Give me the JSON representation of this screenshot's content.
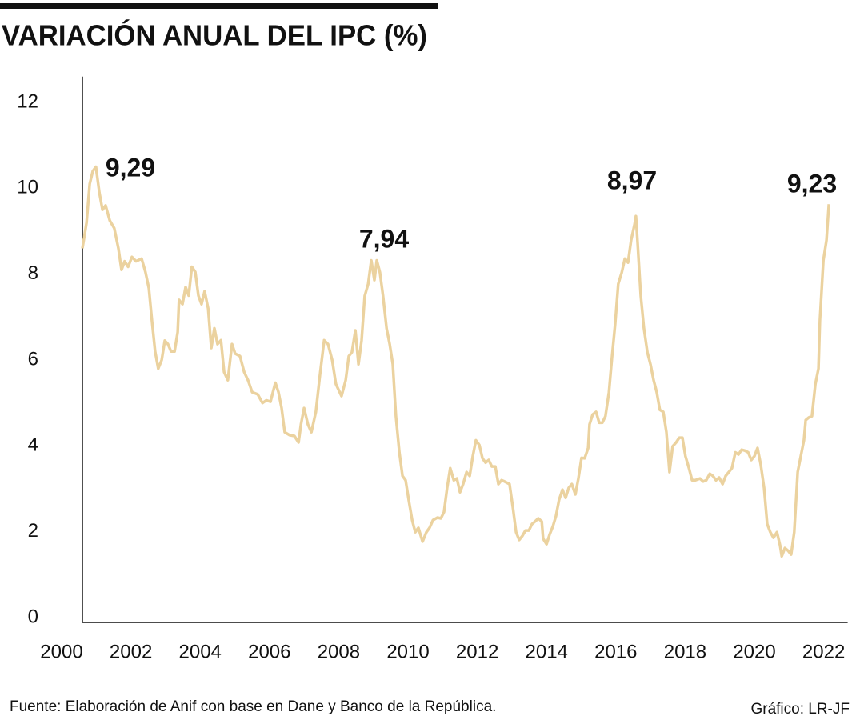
{
  "chart_data": {
    "type": "line",
    "title": "VARIACIÓN ANUAL DEL IPC (%)",
    "source": "Fuente: Elaboración de Anif con base en Dane y Banco de la República.",
    "credit": "Gráfico: LR-JF",
    "annotations": [
      "9,29",
      "7,94",
      "8,97",
      "9,23"
    ],
    "xlim": [
      2000,
      2022.6
    ],
    "xticks": [
      2000,
      2002,
      2004,
      2006,
      2008,
      2010,
      2012,
      2014,
      2016,
      2018,
      2020,
      2022
    ],
    "ylim": [
      0,
      12.6
    ],
    "yticks": [
      0,
      2,
      4,
      6,
      8,
      10,
      12
    ],
    "grid": false,
    "series": [
      {
        "name": "IPC",
        "color": "#ebd29f",
        "x": [
          2000.6,
          2000.72,
          2000.81,
          2000.9,
          2000.99,
          2001.09,
          2001.18,
          2001.27,
          2001.39,
          2001.52,
          2001.64,
          2001.73,
          2001.82,
          2001.92,
          2002.03,
          2002.15,
          2002.31,
          2002.42,
          2002.52,
          2002.61,
          2002.7,
          2002.79,
          2002.89,
          2002.98,
          2003.07,
          2003.16,
          2003.26,
          2003.35,
          2003.39,
          2003.49,
          2003.58,
          2003.67,
          2003.76,
          2003.86,
          2003.95,
          2004.04,
          2004.13,
          2004.23,
          2004.32,
          2004.41,
          2004.5,
          2004.6,
          2004.69,
          2004.8,
          2004.92,
          2005.01,
          2005.15,
          2005.27,
          2005.38,
          2005.5,
          2005.66,
          2005.8,
          2005.91,
          2006.03,
          2006.17,
          2006.26,
          2006.35,
          2006.44,
          2006.58,
          2006.72,
          2006.84,
          2006.91,
          2007.0,
          2007.11,
          2007.21,
          2007.34,
          2007.46,
          2007.58,
          2007.69,
          2007.81,
          2007.92,
          2008.08,
          2008.2,
          2008.29,
          2008.38,
          2008.48,
          2008.57,
          2008.66,
          2008.75,
          2008.85,
          2008.94,
          2009.03,
          2009.1,
          2009.19,
          2009.28,
          2009.38,
          2009.47,
          2009.56,
          2009.65,
          2009.75,
          2009.84,
          2009.93,
          2010.02,
          2010.12,
          2010.21,
          2010.3,
          2010.42,
          2010.53,
          2010.62,
          2010.72,
          2010.85,
          2010.95,
          2011.04,
          2011.13,
          2011.22,
          2011.32,
          2011.41,
          2011.5,
          2011.59,
          2011.69,
          2011.78,
          2011.87,
          2011.96,
          2012.06,
          2012.15,
          2012.24,
          2012.33,
          2012.42,
          2012.52,
          2012.61,
          2012.7,
          2012.79,
          2012.93,
          2013.03,
          2013.12,
          2013.21,
          2013.3,
          2013.39,
          2013.49,
          2013.58,
          2013.67,
          2013.76,
          2013.86,
          2013.9,
          2014.0,
          2014.09,
          2014.18,
          2014.27,
          2014.36,
          2014.46,
          2014.55,
          2014.64,
          2014.73,
          2014.83,
          2014.92,
          2015.01,
          2015.1,
          2015.2,
          2015.24,
          2015.33,
          2015.43,
          2015.52,
          2015.61,
          2015.7,
          2015.8,
          2015.89,
          2015.98,
          2016.07,
          2016.17,
          2016.26,
          2016.35,
          2016.44,
          2016.54,
          2016.58,
          2016.63,
          2016.72,
          2016.81,
          2016.91,
          2017.0,
          2017.09,
          2017.18,
          2017.27,
          2017.37,
          2017.46,
          2017.55,
          2017.64,
          2017.74,
          2017.83,
          2017.92,
          2018.01,
          2018.11,
          2018.2,
          2018.29,
          2018.43,
          2018.52,
          2018.61,
          2018.71,
          2018.8,
          2018.89,
          2018.98,
          2019.08,
          2019.17,
          2019.26,
          2019.35,
          2019.45,
          2019.54,
          2019.63,
          2019.72,
          2019.82,
          2019.91,
          2020.0,
          2020.09,
          2020.18,
          2020.28,
          2020.37,
          2020.46,
          2020.55,
          2020.65,
          2020.74,
          2020.79,
          2020.88,
          2020.97,
          2021.06,
          2021.15,
          2021.25,
          2021.34,
          2021.43,
          2021.48,
          2021.57,
          2021.66,
          2021.76,
          2021.85,
          2021.89,
          2021.99,
          2022.08,
          2022.15
        ],
        "values": [
          8.6,
          9.2,
          10.1,
          10.4,
          10.5,
          9.9,
          9.5,
          9.6,
          9.25,
          9.07,
          8.6,
          8.1,
          8.3,
          8.17,
          8.4,
          8.3,
          8.36,
          8.05,
          7.67,
          6.9,
          6.2,
          5.8,
          6.0,
          6.45,
          6.37,
          6.2,
          6.2,
          6.65,
          7.4,
          7.3,
          7.7,
          7.5,
          8.17,
          8.05,
          7.5,
          7.3,
          7.6,
          7.2,
          6.28,
          6.74,
          6.37,
          6.46,
          5.72,
          5.53,
          6.37,
          6.15,
          6.09,
          5.72,
          5.53,
          5.25,
          5.2,
          5.0,
          5.06,
          5.03,
          5.47,
          5.25,
          4.88,
          4.32,
          4.25,
          4.23,
          4.08,
          4.5,
          4.88,
          4.5,
          4.32,
          4.79,
          5.66,
          6.46,
          6.37,
          6.0,
          5.44,
          5.16,
          5.53,
          6.09,
          6.18,
          6.69,
          5.9,
          6.46,
          7.49,
          7.77,
          8.32,
          7.86,
          8.32,
          8.04,
          7.49,
          6.74,
          6.37,
          5.9,
          4.69,
          3.85,
          3.3,
          3.2,
          2.74,
          2.27,
          1.99,
          2.09,
          1.77,
          1.99,
          2.09,
          2.27,
          2.33,
          2.31,
          2.46,
          3.02,
          3.48,
          3.2,
          3.24,
          2.92,
          3.11,
          3.39,
          3.3,
          3.76,
          4.13,
          4.02,
          3.71,
          3.61,
          3.67,
          3.52,
          3.52,
          3.11,
          3.2,
          3.17,
          3.11,
          2.55,
          1.99,
          1.81,
          1.9,
          2.03,
          2.03,
          2.18,
          2.24,
          2.31,
          2.24,
          1.84,
          1.71,
          1.94,
          2.12,
          2.36,
          2.74,
          2.98,
          2.79,
          3.02,
          3.11,
          2.87,
          3.24,
          3.72,
          3.71,
          3.95,
          4.5,
          4.73,
          4.79,
          4.54,
          4.54,
          4.69,
          5.25,
          6.09,
          6.83,
          7.77,
          8.04,
          8.36,
          8.27,
          8.79,
          9.16,
          9.35,
          8.7,
          7.49,
          6.74,
          6.18,
          5.9,
          5.53,
          5.25,
          4.84,
          4.79,
          4.32,
          3.39,
          3.99,
          4.08,
          4.19,
          4.19,
          3.76,
          3.48,
          3.2,
          3.2,
          3.24,
          3.17,
          3.2,
          3.35,
          3.3,
          3.2,
          3.26,
          3.11,
          3.3,
          3.39,
          3.48,
          3.85,
          3.8,
          3.91,
          3.89,
          3.85,
          3.67,
          3.76,
          3.95,
          3.58,
          3.02,
          2.18,
          1.99,
          1.86,
          1.99,
          1.68,
          1.43,
          1.62,
          1.56,
          1.47,
          1.99,
          3.39,
          3.76,
          4.13,
          4.6,
          4.66,
          4.69,
          5.44,
          5.8,
          6.93,
          8.32,
          8.79,
          9.63
        ]
      }
    ]
  }
}
